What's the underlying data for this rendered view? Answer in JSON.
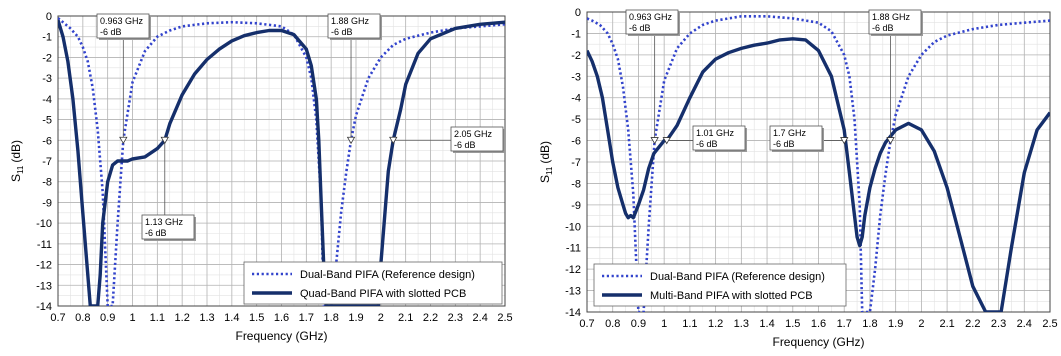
{
  "chart_data": [
    {
      "type": "line",
      "xlabel": "Frequency (GHz)",
      "ylabel": "S11 (dB)",
      "ylabel_main": "S",
      "ylabel_sub": "11",
      "ylabel_unit": "(dB)",
      "xlim": [
        0.7,
        2.5
      ],
      "ylim": [
        -14,
        0
      ],
      "x_ticks": [
        "0.7",
        "0.8",
        "0.9",
        "1",
        "1.1",
        "1.2",
        "1.3",
        "1.4",
        "1.5",
        "1.6",
        "1.7",
        "1.8",
        "1.9",
        "2",
        "2.1",
        "2.2",
        "2.3",
        "2.4",
        "2.5"
      ],
      "y_ticks": [
        "0",
        "-1",
        "-2",
        "-3",
        "-4",
        "-5",
        "-6",
        "-7",
        "-8",
        "-9",
        "-10",
        "-11",
        "-12",
        "-13",
        "-14"
      ],
      "grid": true,
      "legend_position": "bottom-right",
      "series": [
        {
          "name": "Dual-Band PIFA (Reference design)",
          "style": "dotted",
          "color": "#3344cc",
          "x": [
            0.7,
            0.72,
            0.75,
            0.78,
            0.8,
            0.82,
            0.84,
            0.86,
            0.88,
            0.9,
            0.92,
            0.94,
            0.963,
            1.0,
            1.05,
            1.1,
            1.15,
            1.2,
            1.3,
            1.4,
            1.5,
            1.6,
            1.65,
            1.7,
            1.72,
            1.74,
            1.76,
            1.77,
            1.78,
            1.79,
            1.8,
            1.82,
            1.84,
            1.86,
            1.88,
            1.9,
            1.95,
            2.0,
            2.05,
            2.1,
            2.2,
            2.3,
            2.4,
            2.5
          ],
          "y": [
            -0.1,
            -0.3,
            -0.6,
            -1.0,
            -1.5,
            -2.2,
            -3.5,
            -5.5,
            -8.5,
            -14,
            -14,
            -10,
            -6,
            -3.2,
            -1.7,
            -1.0,
            -0.7,
            -0.5,
            -0.35,
            -0.3,
            -0.35,
            -0.5,
            -0.9,
            -2.0,
            -3.0,
            -5.0,
            -9.0,
            -14,
            -14,
            -14,
            -14,
            -12,
            -9.5,
            -7.6,
            -6,
            -4.8,
            -3.0,
            -2.0,
            -1.4,
            -1.1,
            -0.8,
            -0.6,
            -0.5,
            -0.4
          ]
        },
        {
          "name": "Quad-Band PIFA with slotted PCB",
          "style": "solid",
          "color": "#152f6b",
          "x": [
            0.7,
            0.72,
            0.74,
            0.76,
            0.78,
            0.8,
            0.82,
            0.83,
            0.84,
            0.85,
            0.86,
            0.87,
            0.88,
            0.9,
            0.92,
            0.94,
            0.96,
            0.98,
            1.0,
            1.05,
            1.1,
            1.13,
            1.15,
            1.2,
            1.25,
            1.3,
            1.35,
            1.4,
            1.45,
            1.5,
            1.55,
            1.6,
            1.65,
            1.7,
            1.72,
            1.74,
            1.75,
            1.76,
            1.77,
            1.78,
            1.99,
            2.0,
            2.01,
            2.02,
            2.03,
            2.05,
            2.08,
            2.1,
            2.15,
            2.2,
            2.3,
            2.4,
            2.5
          ],
          "y": [
            -0.2,
            -1.0,
            -2.2,
            -4.0,
            -6.5,
            -9.5,
            -12.5,
            -14,
            -14,
            -14,
            -14,
            -12.5,
            -10,
            -8.0,
            -7.2,
            -7.0,
            -7.0,
            -7.0,
            -6.9,
            -6.8,
            -6.4,
            -6.0,
            -5.2,
            -3.8,
            -2.8,
            -2.1,
            -1.6,
            -1.2,
            -0.95,
            -0.8,
            -0.7,
            -0.7,
            -0.9,
            -1.6,
            -2.4,
            -4.0,
            -6.0,
            -9.0,
            -12,
            -14,
            -14,
            -12,
            -10.5,
            -9.0,
            -7.5,
            -6,
            -4.5,
            -3.3,
            -1.8,
            -1.1,
            -0.6,
            -0.4,
            -0.3
          ]
        }
      ],
      "annotations": [
        {
          "freq": 0.963,
          "label1": "0.963 GHz",
          "label2": "-6 dB"
        },
        {
          "freq": 1.88,
          "label1": "1.88 GHz",
          "label2": "-6 dB"
        },
        {
          "freq": 2.05,
          "label1": "2.05 GHz",
          "label2": "-6 dB"
        },
        {
          "freq": 1.13,
          "label1": "1.13 GHz",
          "label2": "-6 dB"
        }
      ]
    },
    {
      "type": "line",
      "xlabel": "Frequency (GHz)",
      "ylabel": "S11 (dB)",
      "ylabel_main": "S",
      "ylabel_sub": "11",
      "ylabel_unit": "(dB)",
      "xlim": [
        0.7,
        2.5
      ],
      "ylim": [
        -14,
        0
      ],
      "x_ticks": [
        "0.7",
        "0.8",
        "0.9",
        "1",
        "1.1",
        "1.2",
        "1.3",
        "1.4",
        "1.5",
        "1.6",
        "1.7",
        "1.8",
        "1.9",
        "2",
        "2.1",
        "2.2",
        "2.3",
        "2.4",
        "2.5"
      ],
      "y_ticks": [
        "0",
        "-1",
        "-2",
        "-3",
        "-4",
        "-5",
        "-6",
        "-7",
        "-8",
        "-9",
        "-10",
        "-11",
        "-12",
        "-13",
        "-14"
      ],
      "grid": true,
      "legend_position": "bottom-left",
      "series": [
        {
          "name": "Dual-Band PIFA (Reference design)",
          "style": "dotted",
          "color": "#3344cc",
          "x": [
            0.7,
            0.72,
            0.75,
            0.78,
            0.8,
            0.82,
            0.84,
            0.86,
            0.88,
            0.9,
            0.92,
            0.94,
            0.963,
            1.0,
            1.05,
            1.1,
            1.15,
            1.2,
            1.3,
            1.4,
            1.5,
            1.6,
            1.65,
            1.7,
            1.72,
            1.74,
            1.76,
            1.77,
            1.78,
            1.79,
            1.8,
            1.82,
            1.84,
            1.86,
            1.88,
            1.9,
            1.95,
            2.0,
            2.05,
            2.1,
            2.2,
            2.3,
            2.4,
            2.5
          ],
          "y": [
            -0.3,
            -0.4,
            -0.6,
            -1.0,
            -1.5,
            -2.2,
            -3.5,
            -5.5,
            -8.5,
            -14,
            -14,
            -10,
            -6,
            -3.2,
            -1.7,
            -1.0,
            -0.6,
            -0.4,
            -0.2,
            -0.2,
            -0.3,
            -0.5,
            -0.9,
            -2.0,
            -3.0,
            -5.0,
            -9.0,
            -14,
            -14,
            -14,
            -14,
            -12,
            -9.5,
            -7.6,
            -6,
            -4.8,
            -3.0,
            -2.0,
            -1.4,
            -1.1,
            -0.8,
            -0.6,
            -0.5,
            -0.4
          ]
        },
        {
          "name": "Multi-Band PIFA with slotted PCB",
          "style": "solid",
          "color": "#152f6b",
          "x": [
            0.7,
            0.72,
            0.74,
            0.76,
            0.78,
            0.8,
            0.82,
            0.84,
            0.85,
            0.86,
            0.87,
            0.88,
            0.89,
            0.9,
            0.92,
            0.94,
            0.96,
            1.0,
            1.01,
            1.05,
            1.1,
            1.15,
            1.2,
            1.25,
            1.3,
            1.35,
            1.4,
            1.45,
            1.5,
            1.55,
            1.6,
            1.65,
            1.7,
            1.72,
            1.74,
            1.75,
            1.76,
            1.77,
            1.78,
            1.8,
            1.82,
            1.84,
            1.86,
            1.88,
            1.9,
            1.95,
            2.0,
            2.05,
            2.1,
            2.15,
            2.2,
            2.25,
            2.28,
            2.31,
            2.35,
            2.4,
            2.45,
            2.5
          ],
          "y": [
            -1.8,
            -2.3,
            -3.0,
            -4.0,
            -5.5,
            -7.0,
            -8.2,
            -9.0,
            -9.4,
            -9.6,
            -9.5,
            -9.6,
            -9.3,
            -9.0,
            -8.3,
            -7.3,
            -6.6,
            -6.0,
            -6.0,
            -5.3,
            -4.0,
            -2.8,
            -2.2,
            -1.9,
            -1.7,
            -1.55,
            -1.45,
            -1.3,
            -1.25,
            -1.3,
            -1.8,
            -3.0,
            -5.5,
            -7.5,
            -9.5,
            -10.5,
            -10.9,
            -10.5,
            -9.5,
            -8.2,
            -7.3,
            -6.6,
            -6.1,
            -5.8,
            -5.5,
            -5.2,
            -5.5,
            -6.5,
            -8.2,
            -10.5,
            -12.8,
            -14,
            -14,
            -14,
            -11,
            -7.5,
            -5.5,
            -4.7
          ]
        }
      ],
      "annotations": [
        {
          "freq": 0.963,
          "label1": "0.963 GHz",
          "label2": "-6 dB"
        },
        {
          "freq": 1.88,
          "label1": "1.88 GHz",
          "label2": "-6 dB"
        },
        {
          "freq": 1.01,
          "label1": "1.01 GHz",
          "label2": "-6 dB"
        },
        {
          "freq": 1.7,
          "label1": "1.7 GHz",
          "label2": "-6 dB"
        }
      ]
    }
  ]
}
